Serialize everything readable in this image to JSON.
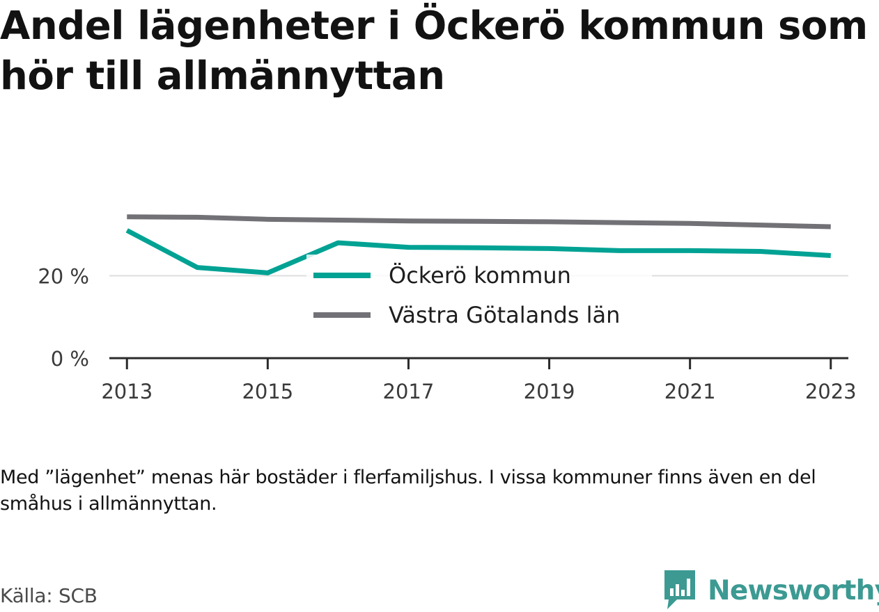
{
  "title": "Andel lägenheter i Öckerö kommun som hör till allmännyttan",
  "note": "Med ”lägenhet” menas här bostäder i flerfamiljshus. I vissa kommuner finns även en del småhus i allmännyttan.",
  "source": "Källa: SCB",
  "brand": {
    "name": "Newsworthy",
    "icon": "bar-chart-speech-bubble-icon",
    "color": "#3c9a93"
  },
  "chart_data": {
    "type": "line",
    "x": [
      2013,
      2014,
      2015,
      2016,
      2017,
      2018,
      2019,
      2020,
      2021,
      2022,
      2023
    ],
    "series": [
      {
        "name": "Öckerö kommun",
        "color": "#00a294",
        "values": [
          31,
          22,
          20.7,
          28,
          26.9,
          26.8,
          26.6,
          26.1,
          26.1,
          25.9,
          24.9
        ]
      },
      {
        "name": "Västra Götalands län",
        "color": "#727176",
        "values": [
          34.3,
          34.2,
          33.7,
          33.5,
          33.3,
          33.2,
          33.1,
          32.9,
          32.7,
          32.3,
          31.9
        ]
      }
    ],
    "x_ticks": [
      "2013",
      "2015",
      "2017",
      "2019",
      "2021",
      "2023"
    ],
    "y_ticks": [
      "0 %",
      "20 %"
    ],
    "y_tick_values": [
      0,
      20
    ],
    "ylim": [
      0,
      40
    ],
    "xlim": [
      2012.75,
      2023.25
    ],
    "grid": "horizontal",
    "legend": "center"
  }
}
